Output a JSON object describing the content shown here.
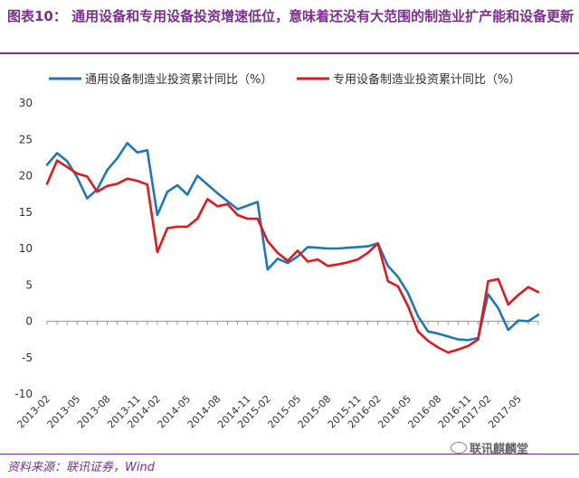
{
  "title": "图表10：  通用设备和专用设备投资增速低位，意味着还没有大范围的制造业扩产能和设备更新",
  "source": "资料来源：联讯证券，Wind",
  "watermark": "联讯麒麟堂",
  "chart_data": {
    "type": "line",
    "x": [
      "2013-02",
      "2013-03",
      "2013-04",
      "2013-05",
      "2013-06",
      "2013-07",
      "2013-08",
      "2013-09",
      "2013-10",
      "2013-11",
      "2013-12",
      "2014-02",
      "2014-03",
      "2014-04",
      "2014-05",
      "2014-06",
      "2014-07",
      "2014-08",
      "2014-09",
      "2014-10",
      "2014-11",
      "2014-12",
      "2015-02",
      "2015-03",
      "2015-04",
      "2015-05",
      "2015-06",
      "2015-07",
      "2015-08",
      "2015-09",
      "2015-10",
      "2015-11",
      "2015-12",
      "2016-02",
      "2016-03",
      "2016-04",
      "2016-05",
      "2016-06",
      "2016-07",
      "2016-08",
      "2016-09",
      "2016-10",
      "2016-11",
      "2016-12",
      "2017-02",
      "2017-03",
      "2017-04",
      "2017-05",
      "2017-06",
      "2017-07"
    ],
    "x_ticks": [
      "2013-02",
      "2013-05",
      "2013-08",
      "2013-11",
      "2014-02",
      "2014-05",
      "2014-08",
      "2014-11",
      "2015-02",
      "2015-05",
      "2015-08",
      "2015-11",
      "2016-02",
      "2016-05",
      "2016-08",
      "2016-11",
      "2017-02",
      "2017-05"
    ],
    "series": [
      {
        "name": "通用设备制造业投资累计同比（%）",
        "color": "#1f77b4",
        "values": [
          21.5,
          23.1,
          22.0,
          19.8,
          16.9,
          18.1,
          20.8,
          22.4,
          24.5,
          23.2,
          23.5,
          14.6,
          17.8,
          18.7,
          17.4,
          20.0,
          18.8,
          17.6,
          16.5,
          15.4,
          15.9,
          16.4,
          7.1,
          8.6,
          8.0,
          8.9,
          10.2,
          10.1,
          10.0,
          10.0,
          10.1,
          10.2,
          10.3,
          10.7,
          7.6,
          6.1,
          3.9,
          0.7,
          -1.4,
          -1.7,
          -2.1,
          -2.5,
          -2.6,
          -2.3,
          3.7,
          1.8,
          -1.2,
          0.1,
          0.0,
          0.9
        ]
      },
      {
        "name": "专用设备制造业投资累计同比（%）",
        "color": "#e3171e",
        "values": [
          18.9,
          22.1,
          21.2,
          20.3,
          19.9,
          17.8,
          18.6,
          18.9,
          19.6,
          19.3,
          18.8,
          9.5,
          12.8,
          13.0,
          13.0,
          14.1,
          16.8,
          15.8,
          16.1,
          14.6,
          14.1,
          14.1,
          11.0,
          9.4,
          8.3,
          9.7,
          8.2,
          8.5,
          7.6,
          7.8,
          8.1,
          8.5,
          9.4,
          10.7,
          5.5,
          4.8,
          2.1,
          -1.4,
          -2.7,
          -3.6,
          -4.3,
          -3.9,
          -3.4,
          -2.5,
          5.5,
          5.8,
          2.3,
          3.6,
          4.7,
          4.0
        ]
      }
    ],
    "ylim": [
      -10,
      30
    ],
    "yticks": [
      -10,
      -5,
      0,
      5,
      10,
      15,
      20,
      25,
      30
    ],
    "legend": "top",
    "grid": false
  }
}
